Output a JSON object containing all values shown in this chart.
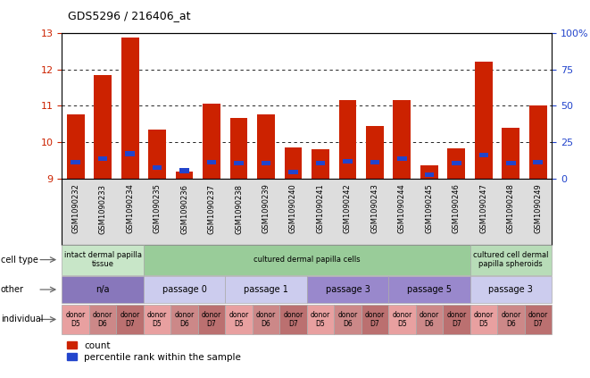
{
  "title": "GDS5296 / 216406_at",
  "samples": [
    "GSM1090232",
    "GSM1090233",
    "GSM1090234",
    "GSM1090235",
    "GSM1090236",
    "GSM1090237",
    "GSM1090238",
    "GSM1090239",
    "GSM1090240",
    "GSM1090241",
    "GSM1090242",
    "GSM1090243",
    "GSM1090244",
    "GSM1090245",
    "GSM1090246",
    "GSM1090247",
    "GSM1090248",
    "GSM1090249"
  ],
  "red_values": [
    10.75,
    11.85,
    12.88,
    10.35,
    9.2,
    11.05,
    10.65,
    10.75,
    9.85,
    9.8,
    11.15,
    10.45,
    11.15,
    9.35,
    9.82,
    12.2,
    10.38,
    11.0
  ],
  "blue_values": [
    9.45,
    9.55,
    9.68,
    9.3,
    9.21,
    9.45,
    9.42,
    9.43,
    9.17,
    9.42,
    9.47,
    9.44,
    9.55,
    9.1,
    9.42,
    9.65,
    9.43,
    9.45
  ],
  "ylim": [
    9.0,
    13.0
  ],
  "yticks_left": [
    9,
    10,
    11,
    12,
    13
  ],
  "yticks_right": [
    0,
    25,
    50,
    75,
    100
  ],
  "bar_color": "#cc2200",
  "blue_color": "#2244cc",
  "bg_xtick_color": "#cccccc",
  "cell_type_groups": [
    {
      "label": "intact dermal papilla\ntissue",
      "start": 0,
      "end": 3,
      "color": "#c8e6c8"
    },
    {
      "label": "cultured dermal papilla cells",
      "start": 3,
      "end": 15,
      "color": "#99cc99"
    },
    {
      "label": "cultured cell dermal\npapilla spheroids",
      "start": 15,
      "end": 18,
      "color": "#b8dcb8"
    }
  ],
  "other_groups": [
    {
      "label": "n/a",
      "start": 0,
      "end": 3,
      "color": "#8877bb"
    },
    {
      "label": "passage 0",
      "start": 3,
      "end": 6,
      "color": "#ccccee"
    },
    {
      "label": "passage 1",
      "start": 6,
      "end": 9,
      "color": "#ccccee"
    },
    {
      "label": "passage 3",
      "start": 9,
      "end": 12,
      "color": "#9988cc"
    },
    {
      "label": "passage 5",
      "start": 12,
      "end": 15,
      "color": "#9988cc"
    },
    {
      "label": "passage 3",
      "start": 15,
      "end": 18,
      "color": "#ccccee"
    }
  ],
  "individual_colors": [
    "#e8a0a0",
    "#cc8888",
    "#bb7070"
  ],
  "individual_labels": [
    "donor\nD5",
    "donor\nD6",
    "donor\nD7"
  ],
  "row_labels": [
    "cell type",
    "other",
    "individual"
  ],
  "legend_labels": [
    "count",
    "percentile rank within the sample"
  ],
  "legend_colors": [
    "#cc2200",
    "#2244cc"
  ]
}
